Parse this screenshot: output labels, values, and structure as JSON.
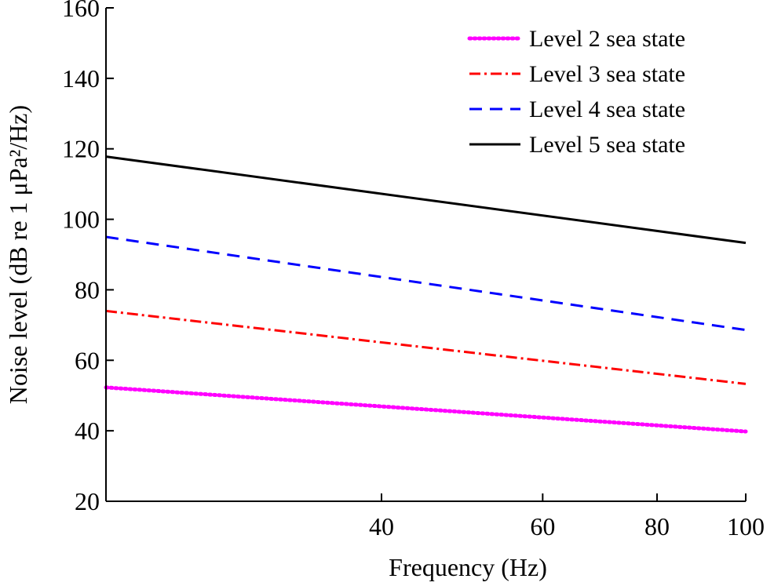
{
  "chart_data": {
    "type": "line",
    "xlabel": "Frequency (Hz)",
    "ylabel": "Noise level (dB re 1 μPa²/Hz)",
    "x_scale": "log",
    "xlim": [
      20,
      100
    ],
    "ylim": [
      20,
      160
    ],
    "x_ticks": [
      40,
      60,
      80,
      100
    ],
    "y_ticks": [
      20,
      40,
      60,
      80,
      100,
      120,
      140,
      160
    ],
    "grid": false,
    "legend_position": "top-right",
    "series": [
      {
        "name": "Level 2 sea state",
        "color": "#ff00ff",
        "style": "dotted",
        "x": [
          20,
          100
        ],
        "y": [
          52.3,
          39.8
        ]
      },
      {
        "name": "Level 3 sea state",
        "color": "#ff0000",
        "style": "dash-dot",
        "x": [
          20,
          100
        ],
        "y": [
          74.0,
          53.3
        ]
      },
      {
        "name": "Level 4 sea state",
        "color": "#0000ff",
        "style": "dashed",
        "x": [
          20,
          100
        ],
        "y": [
          95.0,
          68.6
        ]
      },
      {
        "name": "Level 5 sea state",
        "color": "#000000",
        "style": "solid",
        "x": [
          20,
          100
        ],
        "y": [
          117.8,
          93.3
        ]
      }
    ]
  }
}
